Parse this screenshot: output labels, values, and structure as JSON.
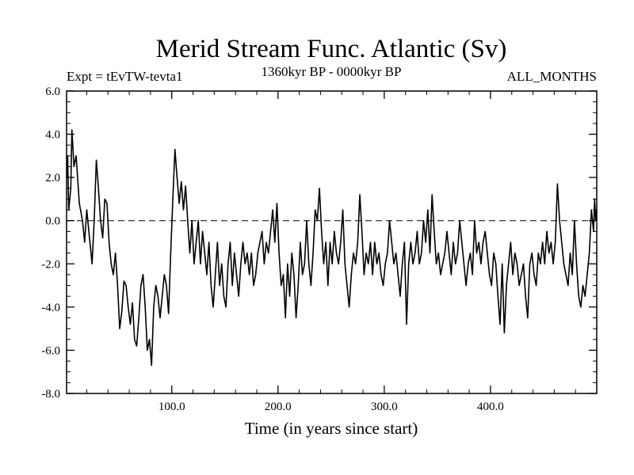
{
  "chart_data": {
    "type": "line",
    "title": "Merid Stream Func. Atlantic (Sv)",
    "subtitle_left": "Expt = tEvTW-tevta1",
    "subtitle_center": "1360kyr BP - 0000kyr BP",
    "subtitle_right": "ALL_MONTHS",
    "xlabel": "Time (in years since start)",
    "ylabel": "",
    "xlim": [
      1,
      500
    ],
    "ylim": [
      -8.0,
      6.0
    ],
    "x_ticks": [
      100,
      200,
      300,
      400
    ],
    "x_tick_labels": [
      "100.0",
      "200.0",
      "300.0",
      "400.0"
    ],
    "y_ticks": [
      -8,
      -6,
      -4,
      -2,
      0,
      2,
      4,
      6
    ],
    "y_tick_labels": [
      "-8.0",
      "-6.0",
      "-4.0",
      "-2.0",
      "0.0",
      "2.0",
      "4.0",
      "6.0"
    ],
    "reference_line": {
      "y": 0.0,
      "style": "dashed"
    },
    "series": [
      {
        "name": "Merid Stream Func. Atlantic",
        "keypoints": [
          [
            1,
            2.0
          ],
          [
            2,
            3.0
          ],
          [
            3,
            0.5
          ],
          [
            5,
            1.5
          ],
          [
            6,
            4.2
          ],
          [
            8,
            2.5
          ],
          [
            10,
            3.0
          ],
          [
            13,
            0.8
          ],
          [
            16,
            0.0
          ],
          [
            18,
            -1.0
          ],
          [
            20,
            0.5
          ],
          [
            23,
            -1.0
          ],
          [
            25,
            -2.0
          ],
          [
            27,
            0.0
          ],
          [
            29,
            2.8
          ],
          [
            31,
            1.5
          ],
          [
            33,
            0.0
          ],
          [
            35,
            -0.8
          ],
          [
            37,
            1.0
          ],
          [
            39,
            0.8
          ],
          [
            41,
            -1.0
          ],
          [
            43,
            -2.0
          ],
          [
            45,
            -2.5
          ],
          [
            47,
            -1.5
          ],
          [
            49,
            -3.0
          ],
          [
            51,
            -5.0
          ],
          [
            53,
            -4.2
          ],
          [
            55,
            -2.8
          ],
          [
            57,
            -3.0
          ],
          [
            59,
            -4.0
          ],
          [
            61,
            -4.8
          ],
          [
            63,
            -3.8
          ],
          [
            65,
            -5.5
          ],
          [
            67,
            -5.8
          ],
          [
            69,
            -4.5
          ],
          [
            71,
            -3.0
          ],
          [
            73,
            -2.5
          ],
          [
            75,
            -4.0
          ],
          [
            77,
            -6.0
          ],
          [
            79,
            -5.5
          ],
          [
            81,
            -6.7
          ],
          [
            83,
            -4.0
          ],
          [
            85,
            -3.0
          ],
          [
            87,
            -3.5
          ],
          [
            89,
            -4.5
          ],
          [
            91,
            -3.5
          ],
          [
            93,
            -2.5
          ],
          [
            95,
            -3.0
          ],
          [
            97,
            -4.3
          ],
          [
            99,
            -1.5
          ],
          [
            101,
            1.0
          ],
          [
            103,
            3.3
          ],
          [
            105,
            2.0
          ],
          [
            107,
            0.8
          ],
          [
            109,
            1.8
          ],
          [
            111,
            0.5
          ],
          [
            113,
            1.6
          ],
          [
            115,
            0.0
          ],
          [
            117,
            -1.5
          ],
          [
            119,
            0.0
          ],
          [
            121,
            -2.0
          ],
          [
            123,
            -1.0
          ],
          [
            125,
            0.0
          ],
          [
            127,
            -2.0
          ],
          [
            129,
            -0.5
          ],
          [
            131,
            -1.5
          ],
          [
            133,
            -2.5
          ],
          [
            135,
            -1.0
          ],
          [
            137,
            -3.0
          ],
          [
            139,
            -4.0
          ],
          [
            141,
            -2.5
          ],
          [
            143,
            -1.0
          ],
          [
            145,
            -3.0
          ],
          [
            147,
            -2.0
          ],
          [
            149,
            -3.5
          ],
          [
            151,
            -4.0
          ],
          [
            153,
            -2.0
          ],
          [
            155,
            -1.0
          ],
          [
            157,
            -3.0
          ],
          [
            159,
            -1.5
          ],
          [
            161,
            -2.5
          ],
          [
            163,
            -3.5
          ],
          [
            165,
            -2.0
          ],
          [
            167,
            -1.0
          ],
          [
            169,
            -2.0
          ],
          [
            171,
            -1.5
          ],
          [
            173,
            -2.5
          ],
          [
            175,
            -1.5
          ],
          [
            177,
            -3.0
          ],
          [
            179,
            -2.5
          ],
          [
            181,
            -1.5
          ],
          [
            183,
            -1.0
          ],
          [
            185,
            -0.5
          ],
          [
            187,
            -2.0
          ],
          [
            189,
            -1.0
          ],
          [
            191,
            -1.5
          ],
          [
            193,
            -0.5
          ],
          [
            195,
            0.5
          ],
          [
            197,
            -1.0
          ],
          [
            199,
            0.8
          ],
          [
            201,
            -1.5
          ],
          [
            203,
            -3.0
          ],
          [
            205,
            -2.5
          ],
          [
            207,
            -4.5
          ],
          [
            209,
            -2.0
          ],
          [
            211,
            -3.5
          ],
          [
            213,
            -1.5
          ],
          [
            215,
            -2.5
          ],
          [
            217,
            -4.5
          ],
          [
            219,
            -3.0
          ],
          [
            221,
            -1.0
          ],
          [
            223,
            -2.5
          ],
          [
            225,
            -2.0
          ],
          [
            227,
            0.0
          ],
          [
            229,
            -2.0
          ],
          [
            231,
            -3.0
          ],
          [
            233,
            -1.5
          ],
          [
            235,
            0.5
          ],
          [
            237,
            0.0
          ],
          [
            239,
            1.5
          ],
          [
            241,
            -0.5
          ],
          [
            243,
            -2.0
          ],
          [
            245,
            -1.0
          ],
          [
            247,
            -3.0
          ],
          [
            249,
            -1.0
          ],
          [
            251,
            -2.0
          ],
          [
            253,
            -0.5
          ],
          [
            255,
            -1.5
          ],
          [
            257,
            -2.0
          ],
          [
            259,
            -1.0
          ],
          [
            261,
            0.5
          ],
          [
            263,
            -2.0
          ],
          [
            265,
            -3.0
          ],
          [
            267,
            -4.0
          ],
          [
            269,
            -2.5
          ],
          [
            271,
            -1.5
          ],
          [
            273,
            -2.0
          ],
          [
            275,
            -1.0
          ],
          [
            277,
            1.2
          ],
          [
            279,
            -0.5
          ],
          [
            281,
            -2.5
          ],
          [
            283,
            -1.5
          ],
          [
            285,
            -2.0
          ],
          [
            287,
            -1.0
          ],
          [
            289,
            -2.5
          ],
          [
            291,
            -1.0
          ],
          [
            293,
            -2.0
          ],
          [
            295,
            -1.5
          ],
          [
            297,
            -2.5
          ],
          [
            299,
            -3.0
          ],
          [
            301,
            -2.0
          ],
          [
            303,
            -1.5
          ],
          [
            305,
            0.0
          ],
          [
            307,
            -1.0
          ],
          [
            309,
            -2.0
          ],
          [
            311,
            -1.5
          ],
          [
            313,
            -2.5
          ],
          [
            315,
            -3.5
          ],
          [
            317,
            -2.0
          ],
          [
            319,
            -1.0
          ],
          [
            321,
            -4.8
          ],
          [
            323,
            -2.0
          ],
          [
            325,
            -1.0
          ],
          [
            327,
            -2.0
          ],
          [
            329,
            -1.5
          ],
          [
            331,
            -0.5
          ],
          [
            333,
            -2.0
          ],
          [
            335,
            -1.5
          ],
          [
            337,
            0.0
          ],
          [
            339,
            -1.0
          ],
          [
            341,
            0.5
          ],
          [
            343,
            -1.5
          ],
          [
            345,
            1.2
          ],
          [
            347,
            -0.5
          ],
          [
            349,
            -2.0
          ],
          [
            351,
            -1.5
          ],
          [
            353,
            -2.5
          ],
          [
            355,
            -2.0
          ],
          [
            357,
            -1.5
          ],
          [
            359,
            -0.5
          ],
          [
            361,
            -1.5
          ],
          [
            363,
            -2.5
          ],
          [
            365,
            -1.0
          ],
          [
            367,
            -2.0
          ],
          [
            369,
            -1.5
          ],
          [
            371,
            0.0
          ],
          [
            373,
            -1.0
          ],
          [
            375,
            -2.0
          ],
          [
            377,
            -3.0
          ],
          [
            379,
            -2.0
          ],
          [
            381,
            -1.5
          ],
          [
            383,
            -2.5
          ],
          [
            385,
            0.0
          ],
          [
            387,
            -1.5
          ],
          [
            389,
            -1.0
          ],
          [
            391,
            -2.0
          ],
          [
            393,
            -1.0
          ],
          [
            395,
            -0.5
          ],
          [
            397,
            -1.5
          ],
          [
            399,
            -2.5
          ],
          [
            401,
            -3.0
          ],
          [
            403,
            -1.5
          ],
          [
            405,
            -2.0
          ],
          [
            407,
            -3.5
          ],
          [
            409,
            -4.8
          ],
          [
            411,
            -2.0
          ],
          [
            413,
            -5.2
          ],
          [
            415,
            -3.0
          ],
          [
            417,
            -2.0
          ],
          [
            419,
            -1.0
          ],
          [
            421,
            -2.5
          ],
          [
            423,
            -1.5
          ],
          [
            425,
            -2.0
          ],
          [
            427,
            -3.0
          ],
          [
            429,
            -2.5
          ],
          [
            431,
            -2.0
          ],
          [
            433,
            -3.5
          ],
          [
            435,
            -4.5
          ],
          [
            437,
            -2.0
          ],
          [
            439,
            -1.5
          ],
          [
            441,
            -2.5
          ],
          [
            443,
            -3.0
          ],
          [
            445,
            -1.5
          ],
          [
            447,
            -2.0
          ],
          [
            449,
            -1.0
          ],
          [
            451,
            -2.0
          ],
          [
            453,
            -0.5
          ],
          [
            455,
            -1.5
          ],
          [
            457,
            -1.0
          ],
          [
            459,
            -2.0
          ],
          [
            461,
            -1.0
          ],
          [
            463,
            1.7
          ],
          [
            465,
            0.0
          ],
          [
            467,
            -1.0
          ],
          [
            469,
            -2.0
          ],
          [
            471,
            -2.5
          ],
          [
            473,
            -3.0
          ],
          [
            475,
            -1.5
          ],
          [
            477,
            -2.5
          ],
          [
            479,
            0.0
          ],
          [
            481,
            -2.0
          ],
          [
            483,
            -3.5
          ],
          [
            485,
            -4.0
          ],
          [
            487,
            -3.0
          ],
          [
            489,
            -3.5
          ],
          [
            491,
            -2.5
          ],
          [
            493,
            -1.5
          ],
          [
            495,
            0.5
          ],
          [
            497,
            -0.5
          ],
          [
            498,
            1.0
          ],
          [
            499,
            0.0
          ],
          [
            500,
            0.5
          ]
        ]
      }
    ]
  }
}
